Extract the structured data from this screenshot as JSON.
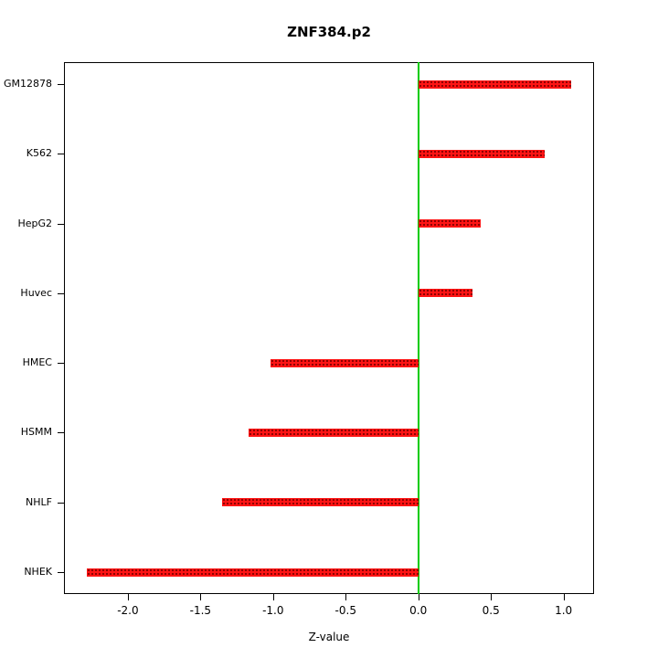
{
  "chart_data": {
    "type": "bar",
    "orientation": "horizontal",
    "title": "ZNF384.p2",
    "xlabel": "Z-value",
    "ylabel": "",
    "categories": [
      "GM12878",
      "K562",
      "HepG2",
      "Huvec",
      "HMEC",
      "HSMM",
      "NHLF",
      "NHEK"
    ],
    "values": [
      1.05,
      0.87,
      0.43,
      0.37,
      -1.02,
      -1.17,
      -1.35,
      -2.28
    ],
    "xlim": [
      -2.44,
      1.21
    ],
    "xticks": [
      -2.0,
      -1.5,
      -1.0,
      -0.5,
      0.0,
      0.5,
      1.0
    ],
    "zero_line_x": 0.0,
    "grid": false,
    "legend": "none",
    "bar_color": "#ff1414",
    "bar_dot_color": "#820000",
    "zero_line_color": "#00cc00"
  }
}
